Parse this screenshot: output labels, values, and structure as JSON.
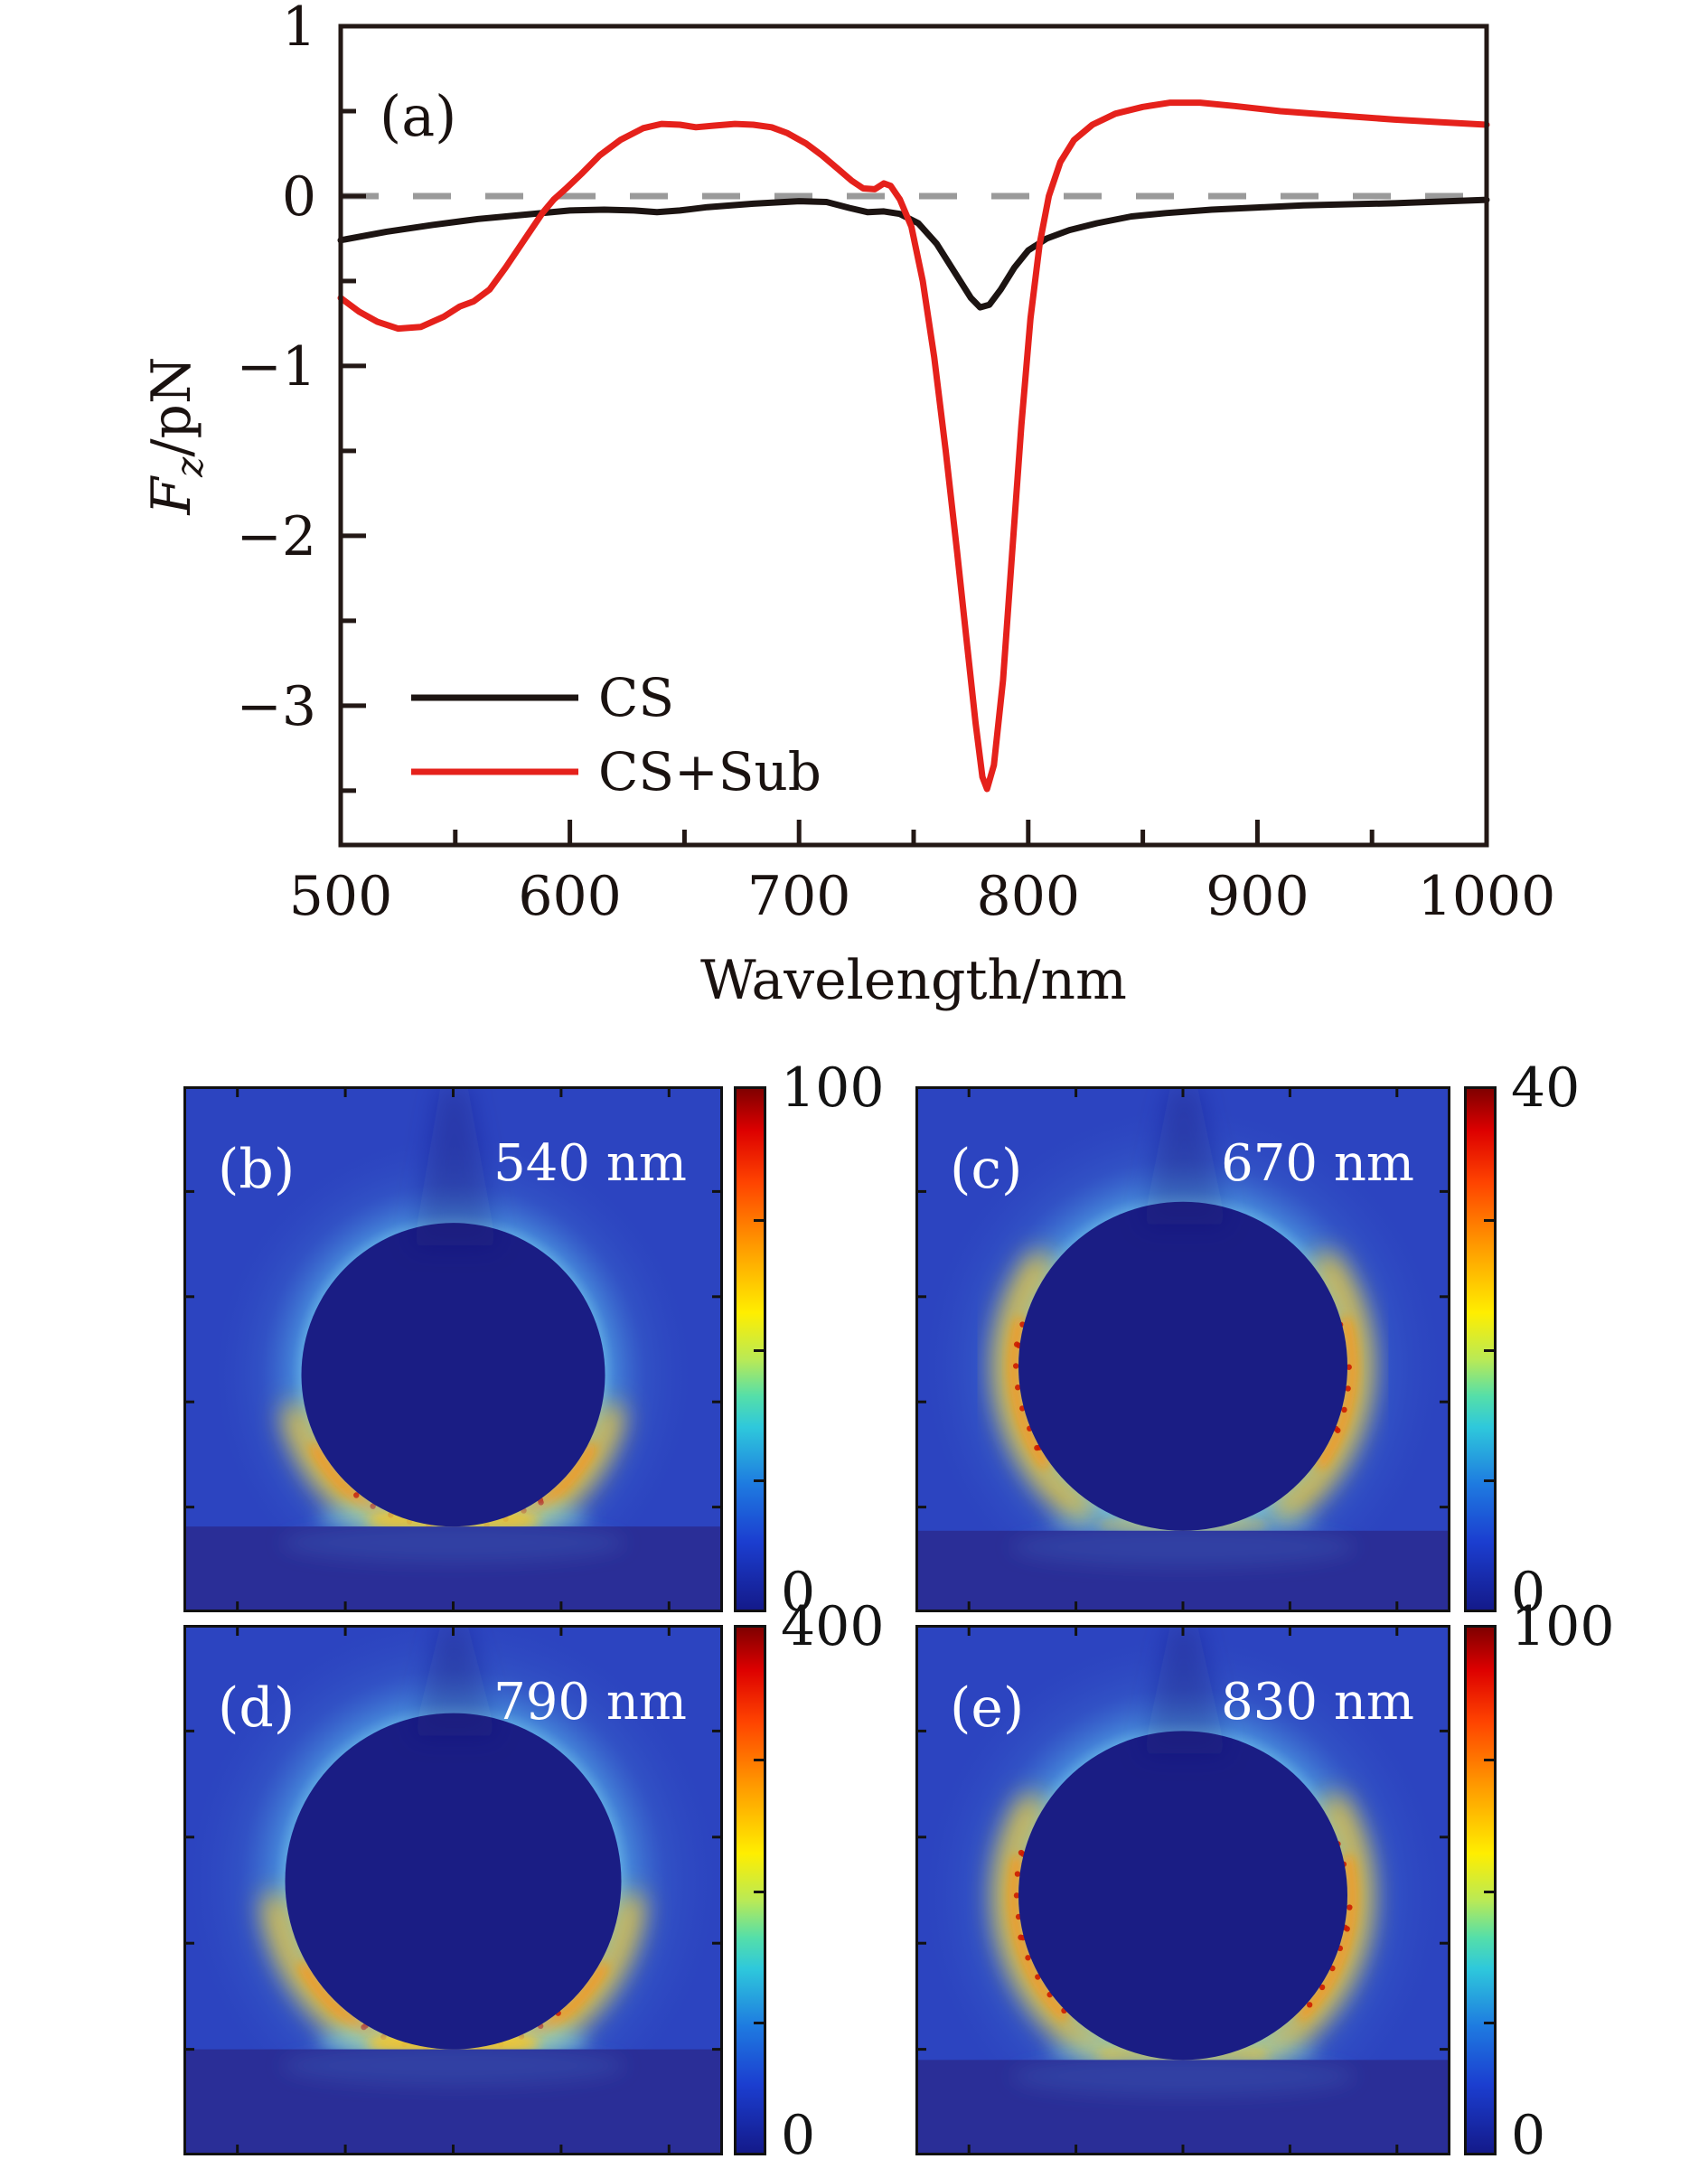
{
  "figure": {
    "panel_a": {
      "label": "(a)",
      "xlabel": "Wavelength/nm",
      "ylabel_f": "F",
      "ylabel_sub": "z",
      "ylabel_unit": "/pN",
      "yticks": [
        "1",
        "0",
        "−1",
        "−2",
        "−3"
      ],
      "xticks": [
        "500",
        "600",
        "700",
        "800",
        "900",
        "1000"
      ],
      "legend": [
        {
          "label": "CS",
          "color": "#1c1412"
        },
        {
          "label": "CS+Sub",
          "color": "#e5211b"
        }
      ],
      "zero_line_color": "#9a9a9a",
      "axis_color": "#231815"
    },
    "heatmap_panels": [
      {
        "label": "(b)",
        "wavelength": "540 nm",
        "cbar_max": "100",
        "cbar_min": "0"
      },
      {
        "label": "(c)",
        "wavelength": "670 nm",
        "cbar_max": "40",
        "cbar_min": "0"
      },
      {
        "label": "(d)",
        "wavelength": "790 nm",
        "cbar_max": "400",
        "cbar_min": "0"
      },
      {
        "label": "(e)",
        "wavelength": "830 nm",
        "cbar_max": "100",
        "cbar_min": "0"
      }
    ]
  },
  "chart_data": {
    "type": "line",
    "title": "",
    "xlabel": "Wavelength/nm",
    "ylabel": "Fz/pN",
    "xlim": [
      500,
      1000
    ],
    "ylim": [
      -3.82,
      1
    ],
    "grid": false,
    "zero_reference_line": 0,
    "legend_position": "lower-left",
    "series": [
      {
        "name": "CS",
        "color": "#1c1412",
        "points": [
          [
            500,
            -0.26
          ],
          [
            520,
            -0.21
          ],
          [
            540,
            -0.17
          ],
          [
            560,
            -0.135
          ],
          [
            580,
            -0.11
          ],
          [
            600,
            -0.085
          ],
          [
            615,
            -0.08
          ],
          [
            628,
            -0.085
          ],
          [
            638,
            -0.095
          ],
          [
            648,
            -0.085
          ],
          [
            660,
            -0.065
          ],
          [
            680,
            -0.045
          ],
          [
            700,
            -0.03
          ],
          [
            712,
            -0.035
          ],
          [
            722,
            -0.07
          ],
          [
            730,
            -0.095
          ],
          [
            737,
            -0.09
          ],
          [
            744,
            -0.105
          ],
          [
            752,
            -0.16
          ],
          [
            760,
            -0.28
          ],
          [
            768,
            -0.45
          ],
          [
            775,
            -0.6
          ],
          [
            779,
            -0.655
          ],
          [
            783,
            -0.64
          ],
          [
            788,
            -0.55
          ],
          [
            794,
            -0.42
          ],
          [
            800,
            -0.32
          ],
          [
            808,
            -0.25
          ],
          [
            818,
            -0.2
          ],
          [
            830,
            -0.16
          ],
          [
            845,
            -0.12
          ],
          [
            860,
            -0.1
          ],
          [
            880,
            -0.08
          ],
          [
            900,
            -0.067
          ],
          [
            920,
            -0.055
          ],
          [
            940,
            -0.048
          ],
          [
            960,
            -0.042
          ],
          [
            980,
            -0.032
          ],
          [
            1000,
            -0.022
          ]
        ]
      },
      {
        "name": "CS+Sub",
        "color": "#e5211b",
        "points": [
          [
            500,
            -0.6
          ],
          [
            508,
            -0.68
          ],
          [
            516,
            -0.74
          ],
          [
            525,
            -0.78
          ],
          [
            535,
            -0.77
          ],
          [
            545,
            -0.71
          ],
          [
            552,
            -0.65
          ],
          [
            558,
            -0.62
          ],
          [
            565,
            -0.55
          ],
          [
            572,
            -0.42
          ],
          [
            580,
            -0.26
          ],
          [
            588,
            -0.1
          ],
          [
            593,
            -0.02
          ],
          [
            598,
            0.04
          ],
          [
            605,
            0.13
          ],
          [
            613,
            0.24
          ],
          [
            622,
            0.33
          ],
          [
            632,
            0.4
          ],
          [
            640,
            0.425
          ],
          [
            648,
            0.42
          ],
          [
            655,
            0.405
          ],
          [
            663,
            0.415
          ],
          [
            672,
            0.425
          ],
          [
            680,
            0.42
          ],
          [
            688,
            0.405
          ],
          [
            695,
            0.37
          ],
          [
            703,
            0.31
          ],
          [
            710,
            0.24
          ],
          [
            717,
            0.16
          ],
          [
            723,
            0.09
          ],
          [
            728,
            0.045
          ],
          [
            733,
            0.04
          ],
          [
            737,
            0.075
          ],
          [
            740,
            0.06
          ],
          [
            744,
            -0.02
          ],
          [
            749,
            -0.18
          ],
          [
            754,
            -0.5
          ],
          [
            759,
            -0.95
          ],
          [
            764,
            -1.5
          ],
          [
            769,
            -2.1
          ],
          [
            773,
            -2.6
          ],
          [
            777,
            -3.1
          ],
          [
            780,
            -3.42
          ],
          [
            782,
            -3.49
          ],
          [
            785,
            -3.35
          ],
          [
            789,
            -2.85
          ],
          [
            793,
            -2.1
          ],
          [
            797,
            -1.35
          ],
          [
            801,
            -0.72
          ],
          [
            805,
            -0.28
          ],
          [
            809,
            0.0
          ],
          [
            814,
            0.2
          ],
          [
            820,
            0.33
          ],
          [
            828,
            0.42
          ],
          [
            838,
            0.485
          ],
          [
            850,
            0.525
          ],
          [
            862,
            0.55
          ],
          [
            875,
            0.55
          ],
          [
            890,
            0.53
          ],
          [
            910,
            0.5
          ],
          [
            935,
            0.475
          ],
          [
            960,
            0.45
          ],
          [
            980,
            0.435
          ],
          [
            1000,
            0.42
          ]
        ]
      }
    ]
  }
}
